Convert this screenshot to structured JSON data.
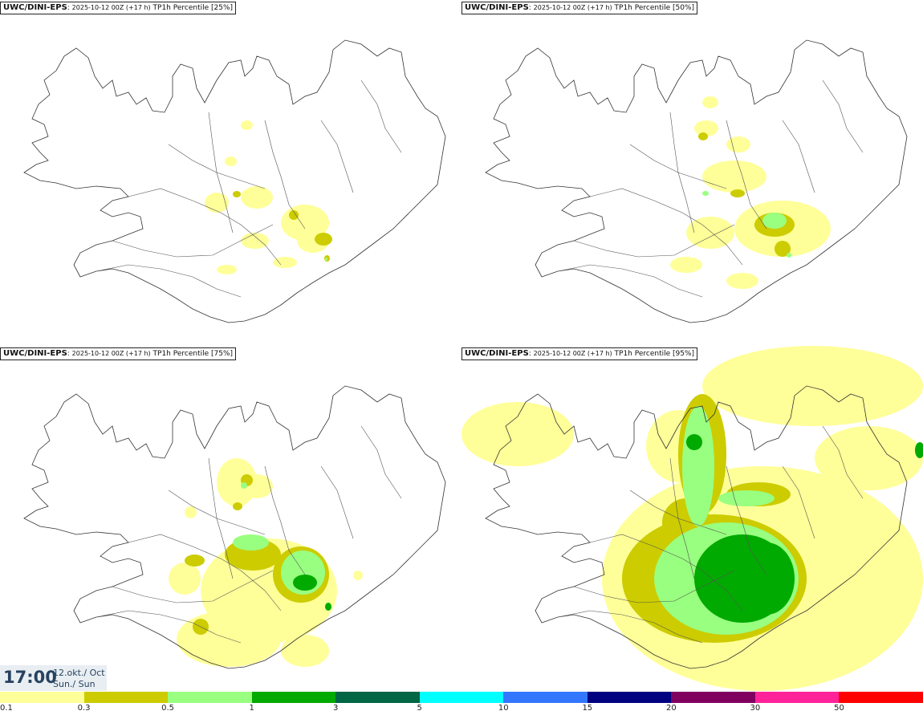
{
  "panels": [
    {
      "source": "UWC/DINI-EPS",
      "run": "2025-10-12 00Z (+17 h)",
      "field": "TP1h Percentile [25%]",
      "level": 1
    },
    {
      "source": "UWC/DINI-EPS",
      "run": "2025-10-12 00Z (+17 h)",
      "field": "TP1h Percentile [50%]",
      "level": 2
    },
    {
      "source": "UWC/DINI-EPS",
      "run": "2025-10-12 00Z (+17 h)",
      "field": "TP1h Percentile [75%]",
      "level": 3
    },
    {
      "source": "UWC/DINI-EPS",
      "run": "2025-10-12 00Z (+17 h)",
      "field": "TP1h Percentile [95%]",
      "level": 4
    }
  ],
  "valid_time": {
    "time": "17:00",
    "date_line1": "12.okt./ Oct",
    "date_line2": "Sun./ Sun"
  },
  "legend": {
    "colors": [
      "#ffff99",
      "#cccc00",
      "#99ff80",
      "#00aa00",
      "#006644",
      "#00ffff",
      "#3377ff",
      "#000080",
      "#800060",
      "#ff2299",
      "#ff0000"
    ],
    "ticks": [
      "0.1",
      "0.3",
      "0.5",
      "1",
      "3",
      "5",
      "10",
      "15",
      "20",
      "30",
      "50"
    ]
  }
}
